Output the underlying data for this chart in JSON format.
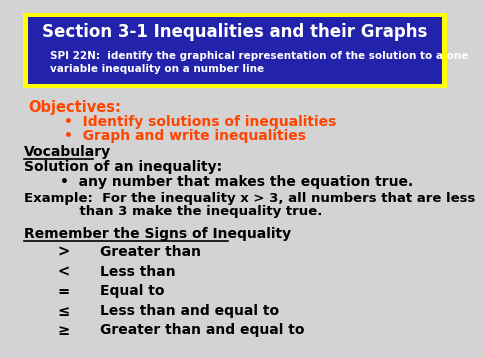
{
  "title_line1": "Section 3-1 Inequalities and their Graphs",
  "title_line2": "SPI 22N:  identify the graphical representation of the solution to a one\nvariable inequality on a number line",
  "title_bg": "#2222aa",
  "title_border": "#ffff00",
  "title_text_color1": "#ffffff",
  "title_text_color2": "#ffffff",
  "objectives_label": "Objectives:",
  "objectives_color": "#ff4400",
  "bullet1": "Identify solutions of inequalities",
  "bullet2": "Graph and write inequalities",
  "vocab_header": "Vocabulary",
  "vocab_line1": "Solution of an inequality:",
  "vocab_bullet": "any number that makes the equation true.",
  "example_line1": "Example:  For the inequality x > 3, all numbers that are less",
  "example_line2": "            than 3 make the inequality true.",
  "signs_header": "Remember the Signs of Inequality",
  "signs": [
    [
      ">",
      "Greater than"
    ],
    [
      "<",
      "Less than"
    ],
    [
      "=",
      "Equal to"
    ],
    [
      "≤",
      "Less than and equal to"
    ],
    [
      "≥",
      "Greater than and equal to"
    ]
  ],
  "bg_color": "#d3d3d3",
  "body_text_color": "#000000",
  "body_font_size": 9.5,
  "title_font_size": 12,
  "subtitle_font_size": 7.5
}
